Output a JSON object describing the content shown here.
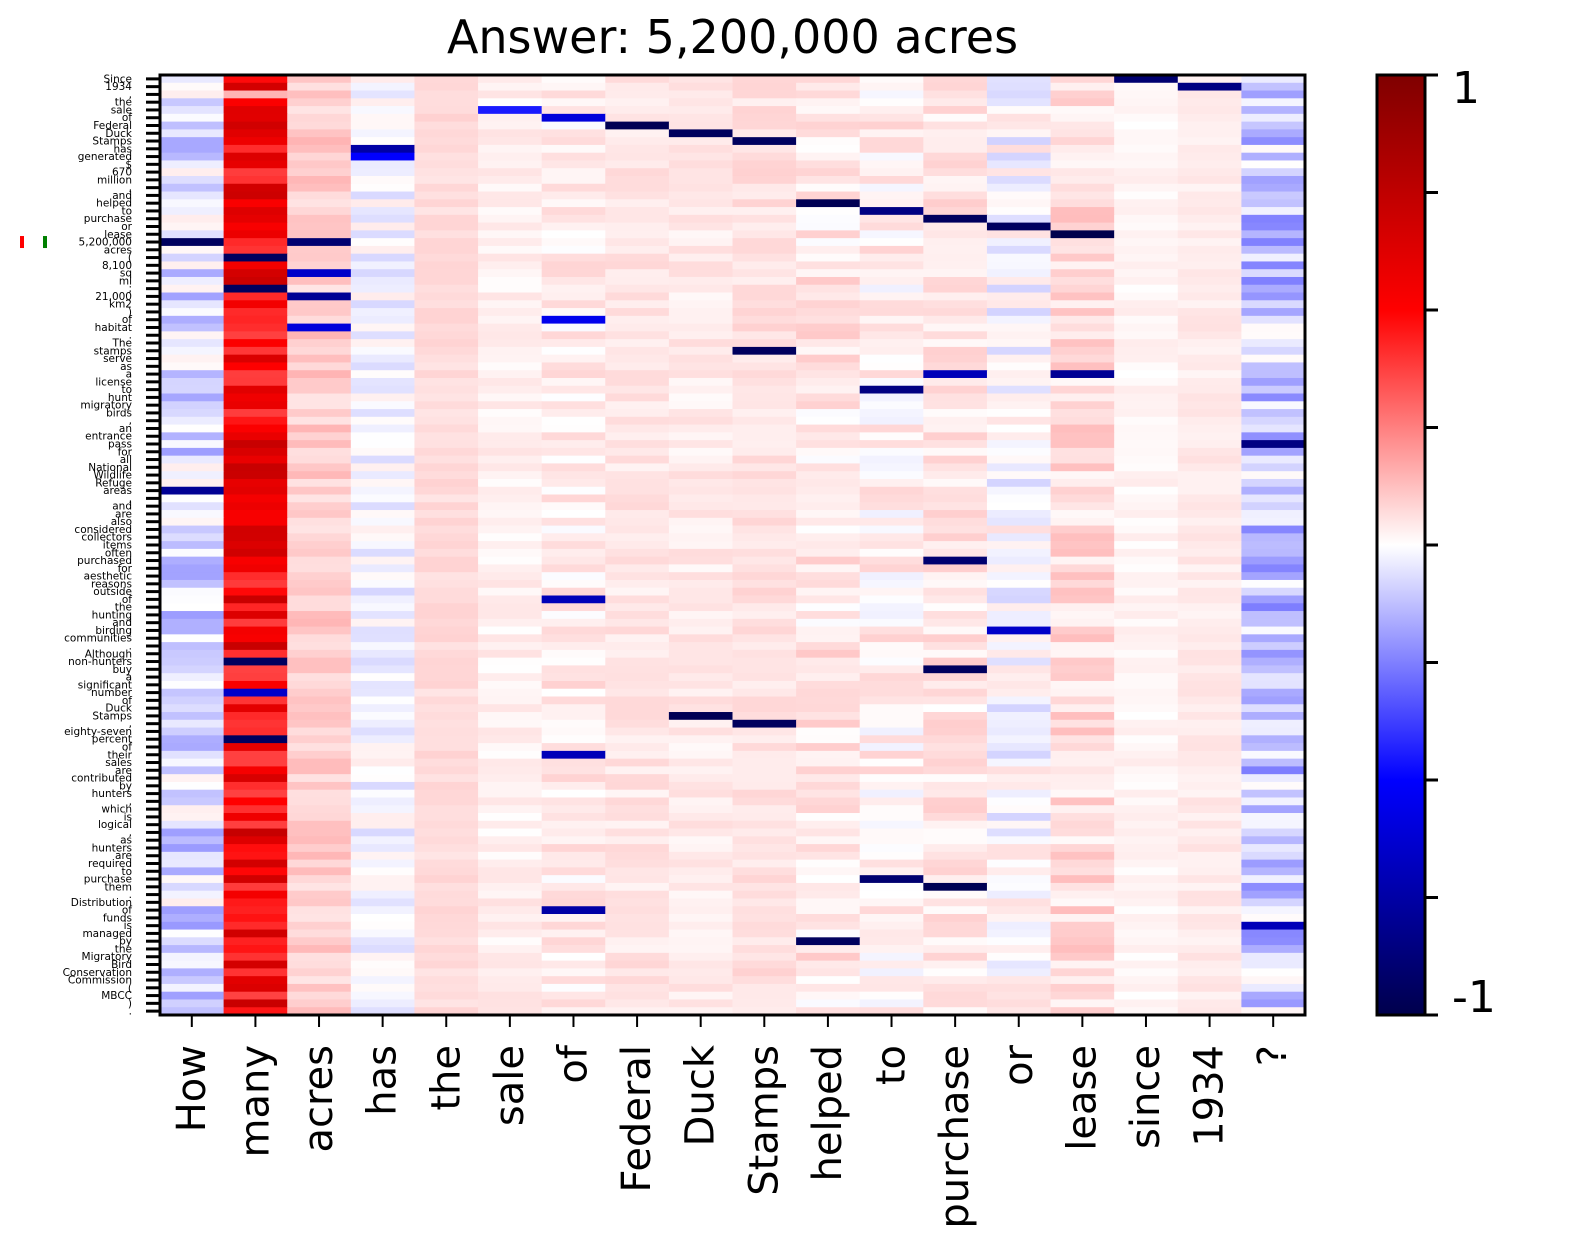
{
  "chart_data": {
    "type": "heatmap",
    "title": "Answer: 5,200,000 acres",
    "xlabel": "",
    "ylabel": "",
    "x_labels": [
      "How",
      "many",
      "acres",
      "has",
      "the",
      "sale",
      "of",
      "Federal",
      "Duck",
      "Stamps",
      "helped",
      "to",
      "purchase",
      "or",
      "lease",
      "since",
      "1934",
      "?"
    ],
    "y_labels": [
      "Since",
      "1934",
      ",",
      "the",
      "sale",
      "of",
      "Federal",
      "Duck",
      "Stamps",
      "has",
      "generated",
      "$",
      "670",
      "million",
      ",",
      "and",
      "helped",
      "to",
      "purchase",
      "or",
      "lease",
      "5,200,000",
      "acres",
      "(",
      "8,100",
      "sq",
      "mi",
      ";",
      "21,000",
      "km2",
      ")",
      "of",
      "habitat",
      ".",
      "The",
      "stamps",
      "serve",
      "as",
      "a",
      "license",
      "to",
      "hunt",
      "migratory",
      "birds",
      ",",
      "an",
      "entrance",
      "pass",
      "for",
      "all",
      "National",
      "Wildlife",
      "Refuge",
      "areas",
      ",",
      "and",
      "are",
      "also",
      "considered",
      "collectors",
      "items",
      "often",
      "purchased",
      "for",
      "aesthetic",
      "reasons",
      "outside",
      "of",
      "the",
      "hunting",
      "and",
      "birding",
      "communities",
      ".",
      "Although",
      "non-hunters",
      "buy",
      "a",
      "significant",
      "number",
      "of",
      "Duck",
      "Stamps",
      ",",
      "eighty-seven",
      "percent",
      "of",
      "their",
      "sales",
      "are",
      "contributed",
      "by",
      "hunters",
      ",",
      "which",
      "is",
      "logical",
      ",",
      "as",
      "hunters",
      "are",
      "required",
      "to",
      "purchase",
      "them",
      ".",
      "Distribution",
      "of",
      "funds",
      "is",
      "managed",
      "by",
      "the",
      "Migratory",
      "Bird",
      "Conservation",
      "Commission",
      "(",
      "MBCC",
      ")",
      "."
    ],
    "colorbar": {
      "min": -1,
      "max": 1,
      "tick_labels": [
        "1",
        "-1"
      ],
      "colormap": "seismic"
    },
    "answer_token": "5,200,000",
    "marker_colors": [
      "#ff0000",
      "#008000"
    ],
    "column_profiles": {
      "How": {
        "base": -0.08,
        "noise": 0.12
      },
      "many": {
        "base": 0.55,
        "noise": 0.18
      },
      "acres": {
        "base": 0.1,
        "noise": 0.05
      },
      "has": {
        "base": -0.02,
        "noise": 0.06
      },
      "the": {
        "base": 0.07,
        "noise": 0.02
      },
      "sale": {
        "base": 0.03,
        "noise": 0.03
      },
      "of": {
        "base": 0.04,
        "noise": 0.05
      },
      "Federal": {
        "base": 0.05,
        "noise": 0.03
      },
      "Duck": {
        "base": 0.04,
        "noise": 0.03
      },
      "Stamps": {
        "base": 0.06,
        "noise": 0.03
      },
      "helped": {
        "base": 0.05,
        "noise": 0.06
      },
      "to": {
        "base": 0.03,
        "noise": 0.06
      },
      "purchase": {
        "base": 0.05,
        "noise": 0.05
      },
      "or": {
        "base": -0.01,
        "noise": 0.08
      },
      "lease": {
        "base": 0.07,
        "noise": 0.06
      },
      "since": {
        "base": 0.02,
        "noise": 0.02
      },
      "1934": {
        "base": 0.04,
        "noise": 0.02
      },
      "?": {
        "base": -0.12,
        "noise": 0.14
      }
    },
    "strong_cells": [
      {
        "row": 0,
        "col": "since",
        "value": -0.9
      },
      {
        "row": 1,
        "col": "1934",
        "value": -0.85
      },
      {
        "row": 4,
        "col": "sale",
        "value": -0.45
      },
      {
        "row": 5,
        "col": "of",
        "value": -0.6
      },
      {
        "row": 6,
        "col": "Federal",
        "value": -0.98
      },
      {
        "row": 7,
        "col": "Duck",
        "value": -0.95
      },
      {
        "row": 8,
        "col": "Stamps",
        "value": -0.95
      },
      {
        "row": 9,
        "col": "has",
        "value": -0.75
      },
      {
        "row": 10,
        "col": "has",
        "value": -0.5
      },
      {
        "row": 16,
        "col": "helped",
        "value": -0.98
      },
      {
        "row": 17,
        "col": "to",
        "value": -0.85
      },
      {
        "row": 18,
        "col": "purchase",
        "value": -0.95
      },
      {
        "row": 19,
        "col": "or",
        "value": -0.95
      },
      {
        "row": 20,
        "col": "lease",
        "value": -1.0
      },
      {
        "row": 21,
        "col": "How",
        "value": -0.95
      },
      {
        "row": 21,
        "col": "acres",
        "value": -0.9
      },
      {
        "row": 23,
        "col": "many",
        "value": -0.95
      },
      {
        "row": 25,
        "col": "acres",
        "value": -0.65
      },
      {
        "row": 27,
        "col": "many",
        "value": -0.95
      },
      {
        "row": 28,
        "col": "acres",
        "value": -0.8
      },
      {
        "row": 31,
        "col": "of",
        "value": -0.55
      },
      {
        "row": 32,
        "col": "acres",
        "value": -0.6
      },
      {
        "row": 35,
        "col": "Stamps",
        "value": -0.95
      },
      {
        "row": 38,
        "col": "purchase",
        "value": -0.7
      },
      {
        "row": 38,
        "col": "lease",
        "value": -0.8
      },
      {
        "row": 40,
        "col": "to",
        "value": -0.85
      },
      {
        "row": 47,
        "col": "?",
        "value": -0.85
      },
      {
        "row": 53,
        "col": "How",
        "value": -0.8
      },
      {
        "row": 62,
        "col": "purchase",
        "value": -0.9
      },
      {
        "row": 67,
        "col": "of",
        "value": -0.7
      },
      {
        "row": 71,
        "col": "or",
        "value": -0.65
      },
      {
        "row": 75,
        "col": "many",
        "value": -0.95
      },
      {
        "row": 76,
        "col": "purchase",
        "value": -0.95
      },
      {
        "row": 79,
        "col": "many",
        "value": -0.65
      },
      {
        "row": 82,
        "col": "Duck",
        "value": -0.98
      },
      {
        "row": 83,
        "col": "Stamps",
        "value": -0.95
      },
      {
        "row": 85,
        "col": "many",
        "value": -0.95
      },
      {
        "row": 87,
        "col": "of",
        "value": -0.7
      },
      {
        "row": 103,
        "col": "to",
        "value": -0.9
      },
      {
        "row": 104,
        "col": "purchase",
        "value": -0.98
      },
      {
        "row": 107,
        "col": "of",
        "value": -0.75
      },
      {
        "row": 109,
        "col": "?",
        "value": -0.7
      },
      {
        "row": 111,
        "col": "helped",
        "value": -0.95
      },
      {
        "row": 2,
        "col": "many",
        "value": 0.15
      }
    ]
  }
}
